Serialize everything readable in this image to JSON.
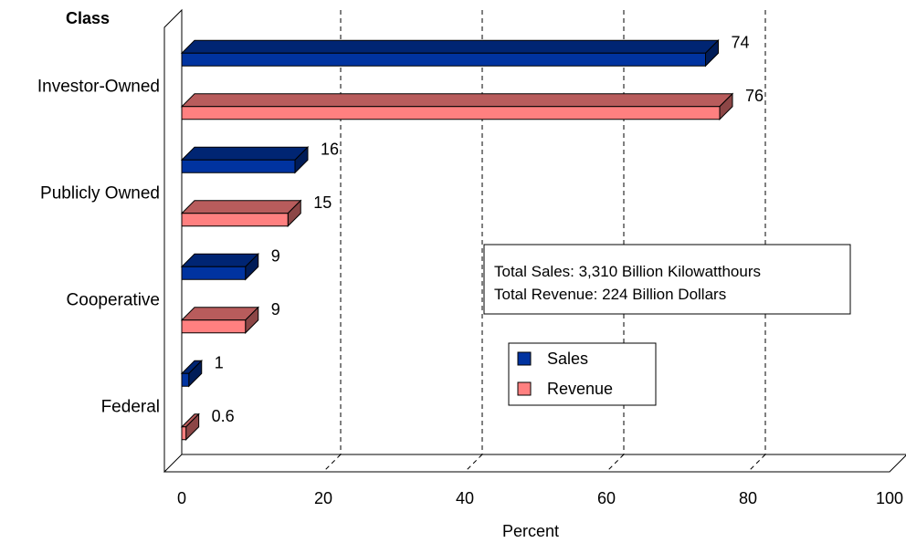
{
  "chart_data": {
    "type": "bar",
    "orientation": "horizontal",
    "three_d": true,
    "category_axis_title": "Class",
    "xlabel": "Percent",
    "xlim": [
      0,
      100
    ],
    "x_ticks": [
      "0",
      "20",
      "40",
      "60",
      "80",
      "100"
    ],
    "grid": "vertical-dashed",
    "categories": [
      "Investor-Owned",
      "Publicly Owned",
      "Cooperative",
      "Federal"
    ],
    "series": [
      {
        "name": "Sales",
        "color": "#0033A0",
        "values": [
          74,
          16,
          9,
          1
        ],
        "labels": [
          "74",
          "16",
          "9",
          "1"
        ]
      },
      {
        "name": "Revenue",
        "color": "#FF8080",
        "values": [
          76,
          15,
          9,
          0.6
        ],
        "labels": [
          "76",
          "15",
          "9",
          "0.6"
        ]
      }
    ],
    "annotation": {
      "lines": [
        "Total Sales: 3,310 Billion Kilowatthours",
        "Total Revenue: 224 Billion Dollars"
      ]
    },
    "legend": {
      "placement": "center-right",
      "entries": [
        "Sales",
        "Revenue"
      ]
    }
  }
}
